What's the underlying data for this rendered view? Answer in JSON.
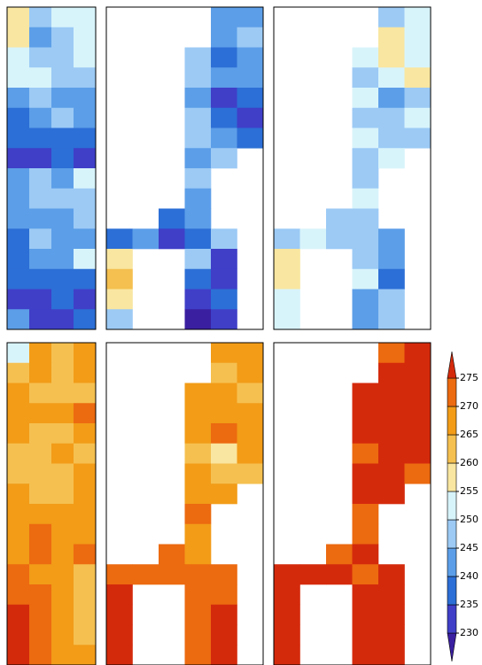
{
  "chart_data": {
    "type": "heatmap",
    "panels": [
      {
        "values": [
          [
            259,
            246,
            250,
            252
          ],
          [
            258,
            244,
            249,
            251
          ],
          [
            252,
            248,
            245,
            250
          ],
          [
            251,
            253,
            247,
            246
          ],
          [
            241,
            245,
            244,
            240
          ],
          [
            238,
            242,
            246,
            244
          ],
          [
            236,
            238,
            235,
            237
          ],
          [
            233,
            231,
            236,
            234
          ],
          [
            240,
            246,
            242,
            252
          ],
          [
            242,
            247,
            245,
            249
          ],
          [
            244,
            243,
            241,
            246
          ],
          [
            239,
            245,
            244,
            240
          ],
          [
            236,
            242,
            240,
            252
          ],
          [
            235,
            238,
            239,
            237
          ],
          [
            233,
            231,
            236,
            234
          ],
          [
            244,
            234,
            232,
            235
          ]
        ]
      },
      {
        "values": [
          [
            null,
            null,
            null,
            null,
            244,
            240
          ],
          [
            null,
            null,
            null,
            null,
            242,
            246
          ],
          [
            null,
            null,
            null,
            245,
            238,
            241
          ],
          [
            null,
            null,
            null,
            247,
            240,
            243
          ],
          [
            null,
            null,
            null,
            244,
            234,
            237
          ],
          [
            null,
            null,
            null,
            248,
            236,
            232
          ],
          [
            null,
            null,
            null,
            246,
            241,
            238
          ],
          [
            null,
            null,
            null,
            243,
            247,
            null
          ],
          [
            null,
            null,
            null,
            246,
            null,
            null
          ],
          [
            null,
            null,
            null,
            241,
            null,
            null
          ],
          [
            null,
            null,
            238,
            244,
            null,
            null
          ],
          [
            236,
            240,
            233,
            238,
            245,
            null
          ],
          [
            258,
            null,
            null,
            245,
            233,
            null
          ],
          [
            262,
            null,
            null,
            237,
            231,
            null
          ],
          [
            255,
            null,
            null,
            232,
            236,
            null
          ],
          [
            248,
            null,
            null,
            229,
            233,
            null
          ]
        ]
      },
      {
        "values": [
          [
            null,
            null,
            null,
            null,
            249,
            252
          ],
          [
            null,
            null,
            null,
            null,
            256,
            251
          ],
          [
            null,
            null,
            null,
            250,
            258,
            254
          ],
          [
            null,
            null,
            null,
            248,
            253,
            257
          ],
          [
            null,
            null,
            null,
            251,
            244,
            249
          ],
          [
            null,
            null,
            null,
            246,
            247,
            250
          ],
          [
            null,
            null,
            null,
            252,
            249,
            248
          ],
          [
            null,
            null,
            null,
            247,
            250,
            null
          ],
          [
            null,
            null,
            null,
            249,
            null,
            null
          ],
          [
            null,
            null,
            null,
            251,
            null,
            null
          ],
          [
            null,
            null,
            247,
            249,
            null,
            null
          ],
          [
            245,
            252,
            248,
            246,
            244,
            null
          ],
          [
            259,
            null,
            null,
            247,
            240,
            null
          ],
          [
            257,
            null,
            null,
            250,
            238,
            null
          ],
          [
            254,
            null,
            null,
            242,
            245,
            null
          ],
          [
            251,
            null,
            null,
            240,
            247,
            null
          ]
        ]
      },
      {
        "values": [
          [
            252,
            266,
            263,
            266
          ],
          [
            264,
            265,
            262,
            266
          ],
          [
            266,
            264,
            262,
            264
          ],
          [
            267,
            266,
            266,
            270
          ],
          [
            266,
            262,
            264,
            266
          ],
          [
            262,
            261,
            266,
            263
          ],
          [
            263,
            260,
            262,
            266
          ],
          [
            266,
            262,
            264,
            267
          ],
          [
            268,
            266,
            267,
            268
          ],
          [
            269,
            270,
            268,
            269
          ],
          [
            268,
            270,
            268,
            271
          ],
          [
            270,
            269,
            267,
            264
          ],
          [
            272,
            270,
            266,
            263
          ],
          [
            276,
            274,
            265,
            262
          ],
          [
            277,
            272,
            266,
            264
          ],
          [
            276,
            271,
            268,
            265
          ]
        ]
      },
      {
        "values": [
          [
            null,
            null,
            null,
            null,
            266,
            268
          ],
          [
            null,
            null,
            null,
            null,
            264,
            267
          ],
          [
            null,
            null,
            null,
            265,
            267,
            263
          ],
          [
            null,
            null,
            null,
            268,
            266,
            269
          ],
          [
            null,
            null,
            null,
            266,
            270,
            268
          ],
          [
            null,
            null,
            null,
            262,
            258,
            266
          ],
          [
            null,
            null,
            null,
            267,
            264,
            262
          ],
          [
            null,
            null,
            null,
            266,
            269,
            null
          ],
          [
            null,
            null,
            null,
            270,
            null,
            null
          ],
          [
            null,
            null,
            null,
            268,
            null,
            null
          ],
          [
            null,
            null,
            271,
            269,
            null,
            null
          ],
          [
            273,
            274,
            270,
            272,
            272,
            null
          ],
          [
            276,
            null,
            null,
            271,
            274,
            null
          ],
          [
            277,
            null,
            null,
            273,
            275,
            null
          ],
          [
            276,
            null,
            null,
            272,
            276,
            null
          ],
          [
            275,
            null,
            null,
            270,
            277,
            null
          ]
        ]
      },
      {
        "values": [
          [
            null,
            null,
            null,
            null,
            274,
            276
          ],
          [
            null,
            null,
            null,
            null,
            276,
            277
          ],
          [
            null,
            null,
            null,
            275,
            277,
            276
          ],
          [
            null,
            null,
            null,
            276,
            275,
            277
          ],
          [
            null,
            null,
            null,
            277,
            276,
            276
          ],
          [
            null,
            null,
            null,
            274,
            277,
            275
          ],
          [
            null,
            null,
            null,
            276,
            275,
            274
          ],
          [
            null,
            null,
            null,
            275,
            276,
            null
          ],
          [
            null,
            null,
            null,
            274,
            null,
            null
          ],
          [
            null,
            null,
            null,
            273,
            null,
            null
          ],
          [
            null,
            null,
            274,
            276,
            null,
            null
          ],
          [
            277,
            276,
            275,
            274,
            276,
            null
          ],
          [
            278,
            null,
            null,
            276,
            277,
            null
          ],
          [
            277,
            null,
            null,
            277,
            278,
            null
          ],
          [
            276,
            null,
            null,
            276,
            277,
            null
          ],
          [
            277,
            null,
            null,
            275,
            278,
            null
          ]
        ]
      }
    ],
    "colorbar_ticks": [
      230,
      235,
      240,
      245,
      250,
      255,
      260,
      265,
      270,
      275
    ],
    "colors": [
      "#3a1fa0",
      "#3f3fc8",
      "#2c6fd6",
      "#5c9ee8",
      "#9ccaf5",
      "#d8f4fb",
      "#f9e6a0",
      "#f5c050",
      "#f29c18",
      "#ec6a10",
      "#d42a0c"
    ]
  }
}
